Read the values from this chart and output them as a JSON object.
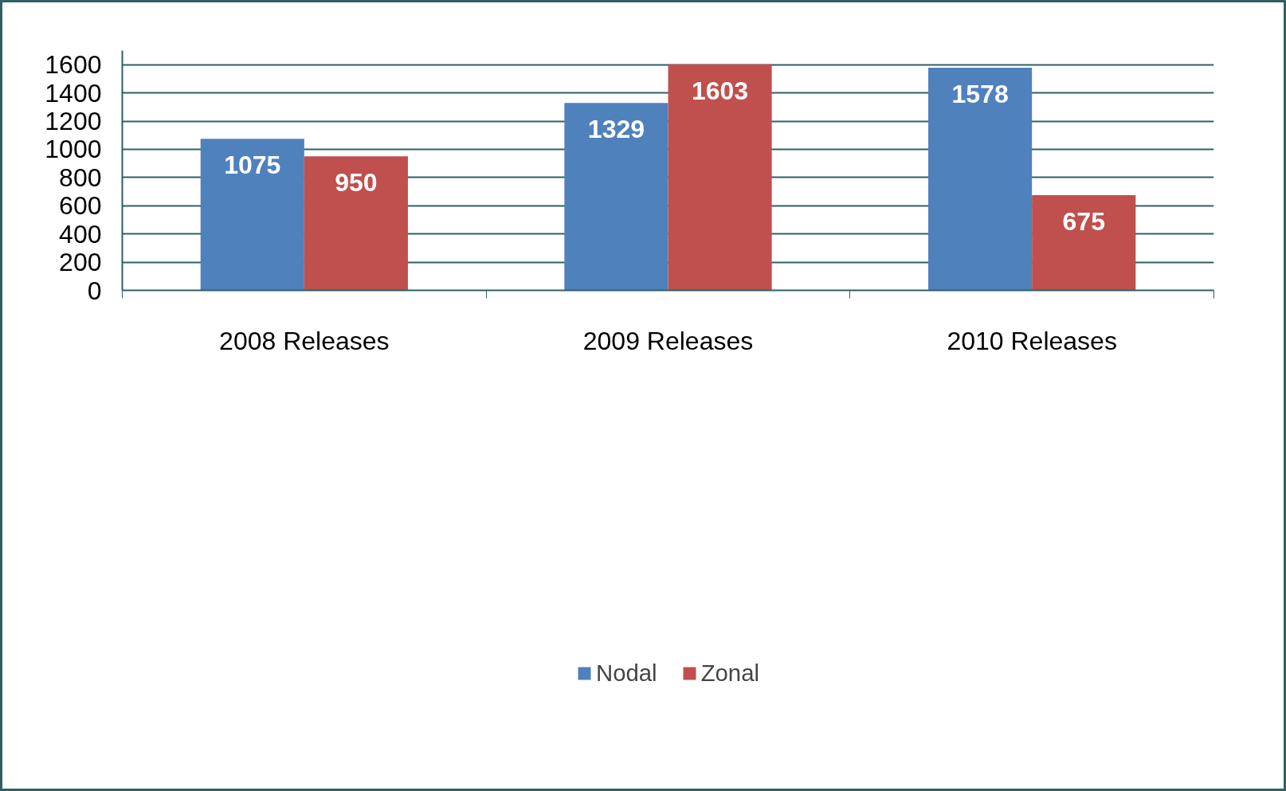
{
  "chart_data": {
    "type": "bar",
    "categories": [
      "2008 Releases",
      "2009 Releases",
      "2010 Releases"
    ],
    "series": [
      {
        "name": "Nodal",
        "color": "#4f81bd",
        "values": [
          1075,
          1329,
          1578
        ]
      },
      {
        "name": "Zonal",
        "color": "#c0504d",
        "values": [
          950,
          1603,
          675
        ]
      }
    ],
    "ylim": [
      0,
      1700
    ],
    "yticks": [
      0,
      200,
      400,
      600,
      800,
      1000,
      1200,
      1400,
      1600
    ],
    "grid": "y",
    "legend": "bottom",
    "data_labels": true
  }
}
